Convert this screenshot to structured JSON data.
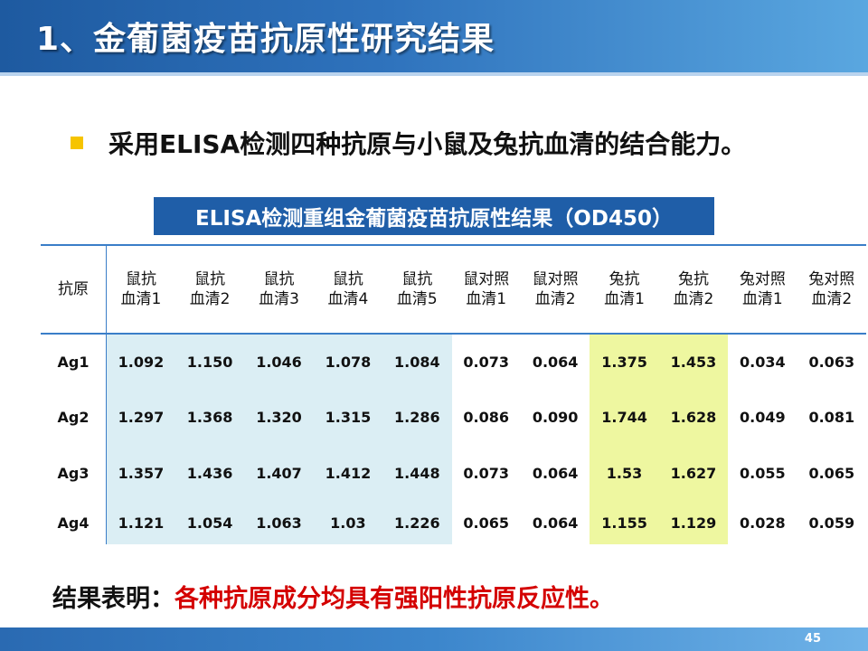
{
  "slide": {
    "title": "1、金葡菌疫苗抗原性研究结果",
    "bullet": "采用ELISA检测四种抗原与小鼠及兔抗血清的结合能力。",
    "table_caption": "ELISA检测重组金葡菌疫苗抗原性结果（OD450）",
    "conclusion_lead": "结果表明：",
    "conclusion_result": "各种抗原成分均具有强阳性抗原反应性。",
    "page_number": "45"
  },
  "table": {
    "corner": "抗原",
    "headers": [
      [
        "鼠抗",
        "血清1"
      ],
      [
        "鼠抗",
        "血清2"
      ],
      [
        "鼠抗",
        "血清3"
      ],
      [
        "鼠抗",
        "血清4"
      ],
      [
        "鼠抗",
        "血清5"
      ],
      [
        "鼠对照",
        "血清1"
      ],
      [
        "鼠对照",
        "血清2"
      ],
      [
        "兔抗",
        "血清1"
      ],
      [
        "兔抗",
        "血清2"
      ],
      [
        "兔对照",
        "血清1"
      ],
      [
        "兔对照",
        "血清2"
      ]
    ],
    "rows": [
      {
        "label": "Ag1",
        "values": [
          "1.092",
          "1.150",
          "1.046",
          "1.078",
          "1.084",
          "0.073",
          "0.064",
          "1.375",
          "1.453",
          "0.034",
          "0.063"
        ]
      },
      {
        "label": "Ag2",
        "values": [
          "1.297",
          "1.368",
          "1.320",
          "1.315",
          "1.286",
          "0.086",
          "0.090",
          "1.744",
          "1.628",
          "0.049",
          "0.081"
        ]
      },
      {
        "label": "Ag3",
        "values": [
          "1.357",
          "1.436",
          "1.407",
          "1.412",
          "1.448",
          "0.073",
          "0.064",
          "1.53",
          "1.627",
          "0.055",
          "0.065"
        ]
      },
      {
        "label": "Ag4",
        "values": [
          "1.121",
          "1.054",
          "1.063",
          "1.03",
          "1.226",
          "0.065",
          "0.064",
          "1.155",
          "1.129",
          "0.028",
          "0.059"
        ]
      }
    ]
  },
  "colors": {
    "title_bar": "#2f73bd",
    "caption_bg": "#1f5ea8",
    "mouse_antiserum_highlight": "#dbeef4",
    "rabbit_antiserum_highlight": "#eef7a0",
    "conclusion_red": "#d40000",
    "bullet_square": "#f6c400"
  }
}
